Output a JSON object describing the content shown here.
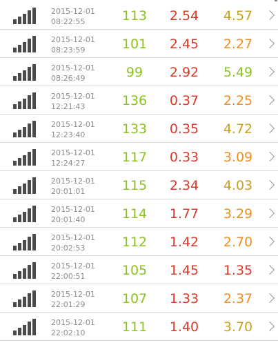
{
  "colors": {
    "green": "#8cc21f",
    "red": "#d93a2b",
    "orange": "#ef8f21",
    "olive": "#c9a11e",
    "gray_text": "#8c8c8c"
  },
  "rows": [
    {
      "date": "2015-12-01",
      "time": "08:22:55",
      "v1": "113",
      "v2": "2.54",
      "v3": "4.57",
      "v3_color": "#c9a11e"
    },
    {
      "date": "2015-12-01",
      "time": "08:23:59",
      "v1": "101",
      "v2": "2.45",
      "v3": "2.27",
      "v3_color": "#ef8f21"
    },
    {
      "date": "2015-12-01",
      "time": "08:26:49",
      "v1": "99",
      "v2": "2.92",
      "v3": "5.49",
      "v3_color": "#8cc21f"
    },
    {
      "date": "2015-12-01",
      "time": "12:21:43",
      "v1": "136",
      "v2": "0.37",
      "v3": "2.25",
      "v3_color": "#ef8f21"
    },
    {
      "date": "2015-12-01",
      "time": "12:23:40",
      "v1": "133",
      "v2": "0.35",
      "v3": "4.72",
      "v3_color": "#c9a11e"
    },
    {
      "date": "2015-12-01",
      "time": "12:24:27",
      "v1": "117",
      "v2": "0.33",
      "v3": "3.09",
      "v3_color": "#ef8f21"
    },
    {
      "date": "2015-12-01",
      "time": "20:01:01",
      "v1": "115",
      "v2": "2.34",
      "v3": "4.03",
      "v3_color": "#c9a11e"
    },
    {
      "date": "2015-12-01",
      "time": "20:01:40",
      "v1": "114",
      "v2": "1.77",
      "v3": "3.29",
      "v3_color": "#ef8f21"
    },
    {
      "date": "2015-12-01",
      "time": "20:02:53",
      "v1": "112",
      "v2": "1.42",
      "v3": "2.70",
      "v3_color": "#ef8f21"
    },
    {
      "date": "2015-12-01",
      "time": "22:00:51",
      "v1": "105",
      "v2": "1.45",
      "v3": "1.35",
      "v3_color": "#d93a2b"
    },
    {
      "date": "2015-12-01",
      "time": "22:01:29",
      "v1": "107",
      "v2": "1.33",
      "v3": "2.37",
      "v3_color": "#ef8f21"
    },
    {
      "date": "2015-12-01",
      "time": "22:02:10",
      "v1": "111",
      "v2": "1.40",
      "v3": "3.70",
      "v3_color": "#c9a11e"
    }
  ]
}
